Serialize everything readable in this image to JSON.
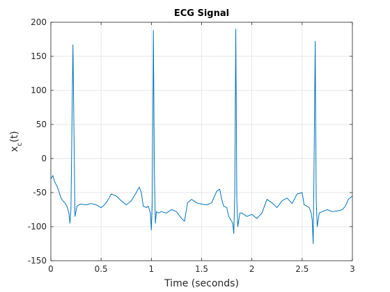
{
  "chart_data": {
    "type": "line",
    "title": "ECG Signal",
    "xlabel": "Time (seconds)",
    "ylabel": "x",
    "ylabel_subscript": "c",
    "ylabel_suffix": "(t)",
    "xlim": [
      0,
      3
    ],
    "ylim": [
      -150,
      200
    ],
    "xticks": [
      0,
      0.5,
      1,
      1.5,
      2,
      2.5,
      3
    ],
    "xtick_labels": [
      "0",
      "0.5",
      "1",
      "1.5",
      "2",
      "2.5",
      "3"
    ],
    "yticks": [
      -150,
      -100,
      -50,
      0,
      50,
      100,
      150,
      200
    ],
    "ytick_labels": [
      "-150",
      "-100",
      "-50",
      "0",
      "50",
      "100",
      "150",
      "200"
    ],
    "grid": true,
    "line_color": "#0072BD",
    "series": [
      {
        "x": [
          0,
          0.02,
          0.04,
          0.06,
          0.08,
          0.1,
          0.12,
          0.14,
          0.16,
          0.18,
          0.19,
          0.2,
          0.21,
          0.22,
          0.23,
          0.24,
          0.26,
          0.28,
          0.3,
          0.35,
          0.4,
          0.45,
          0.5,
          0.52,
          0.55,
          0.58,
          0.6,
          0.65,
          0.7,
          0.75,
          0.8,
          0.85,
          0.88,
          0.9,
          0.92,
          0.95,
          0.97,
          0.99,
          1.0,
          1.01,
          1.02,
          1.03,
          1.04,
          1.05,
          1.07,
          1.1,
          1.15,
          1.2,
          1.25,
          1.3,
          1.33,
          1.36,
          1.4,
          1.45,
          1.5,
          1.55,
          1.6,
          1.65,
          1.68,
          1.7,
          1.72,
          1.75,
          1.77,
          1.79,
          1.81,
          1.82,
          1.83,
          1.84,
          1.85,
          1.86,
          1.88,
          1.9,
          1.95,
          2.0,
          2.05,
          2.1,
          2.15,
          2.2,
          2.25,
          2.3,
          2.35,
          2.4,
          2.45,
          2.5,
          2.52,
          2.55,
          2.57,
          2.59,
          2.6,
          2.61,
          2.62,
          2.63,
          2.64,
          2.65,
          2.67,
          2.7,
          2.75,
          2.8,
          2.85,
          2.9,
          2.93,
          2.96,
          3.0
        ],
        "y": [
          -30,
          -25,
          -35,
          -40,
          -48,
          -58,
          -62,
          -65,
          -70,
          -80,
          -95,
          -75,
          50,
          167,
          40,
          -85,
          -70,
          -68,
          -67,
          -68,
          -66,
          -68,
          -72,
          -70,
          -65,
          -58,
          -52,
          -55,
          -62,
          -68,
          -62,
          -50,
          -42,
          -50,
          -70,
          -72,
          -70,
          -80,
          -105,
          -60,
          188,
          -20,
          -95,
          -78,
          -80,
          -78,
          -80,
          -75,
          -78,
          -88,
          -92,
          -65,
          -60,
          -65,
          -67,
          -68,
          -65,
          -48,
          -45,
          -60,
          -70,
          -72,
          -85,
          -90,
          -95,
          -110,
          -50,
          190,
          -60,
          -100,
          -80,
          -80,
          -85,
          -82,
          -88,
          -80,
          -60,
          -65,
          -72,
          -62,
          -58,
          -66,
          -52,
          -50,
          -68,
          -70,
          -72,
          -80,
          -90,
          -125,
          10,
          172,
          -60,
          -100,
          -80,
          -78,
          -75,
          -78,
          -77,
          -75,
          -70,
          -60,
          -55
        ]
      }
    ]
  }
}
